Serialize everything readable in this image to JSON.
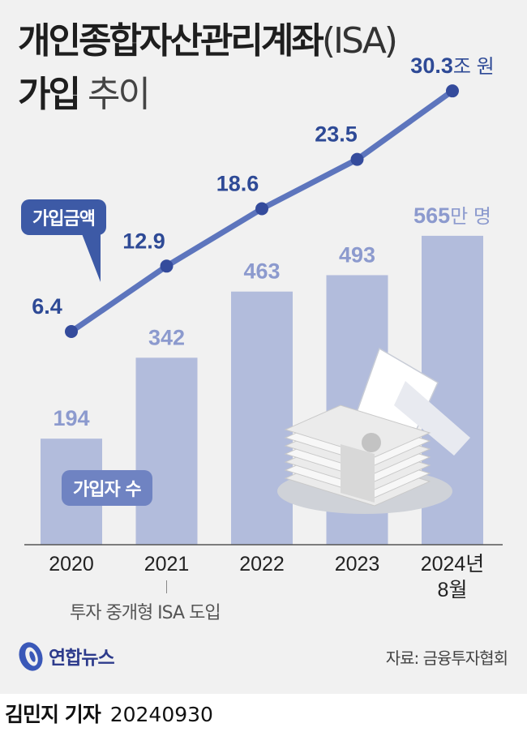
{
  "title": {
    "line1_main": "개인종합자산관리계좌",
    "line1_suffix": "(ISA)",
    "line2_bold": "가입",
    "line2_light": "추이"
  },
  "tags": {
    "amount": "가입금액",
    "subscribers": "가입자 수"
  },
  "note": "투자 중개형 ISA 도입",
  "logo_text": "연합뉴스",
  "source": "자료: 금융투자협회",
  "footer": {
    "reporter": "김민지 기자",
    "date": "20240930"
  },
  "colors": {
    "bar": "#b2bcdc",
    "bar_label": "#8c9ace",
    "line": "#5d75bd",
    "point": "#344b9c",
    "point_label": "#2e4a96",
    "tag_amount": "#3d5aa6",
    "tag_subscribers": "#6f83c2",
    "background": "#f1f1f1"
  },
  "chart_data": {
    "type": "bar+line",
    "categories": [
      "2020",
      "2021",
      "2022",
      "2023",
      "2024년\n8월"
    ],
    "series": [
      {
        "name": "가입자 수",
        "type": "bar",
        "values": [
          194,
          342,
          463,
          493,
          565
        ],
        "labels": [
          "194",
          "342",
          "463",
          "493",
          "565"
        ],
        "unit": "만 명"
      },
      {
        "name": "가입금액",
        "type": "line",
        "values": [
          6.4,
          12.9,
          18.6,
          23.5,
          30.3
        ],
        "labels": [
          "6.4",
          "12.9",
          "18.6",
          "23.5",
          "30.3"
        ],
        "unit": "조 원"
      }
    ],
    "annotation": {
      "category": "2021",
      "text": "투자 중개형 ISA 도입"
    }
  }
}
